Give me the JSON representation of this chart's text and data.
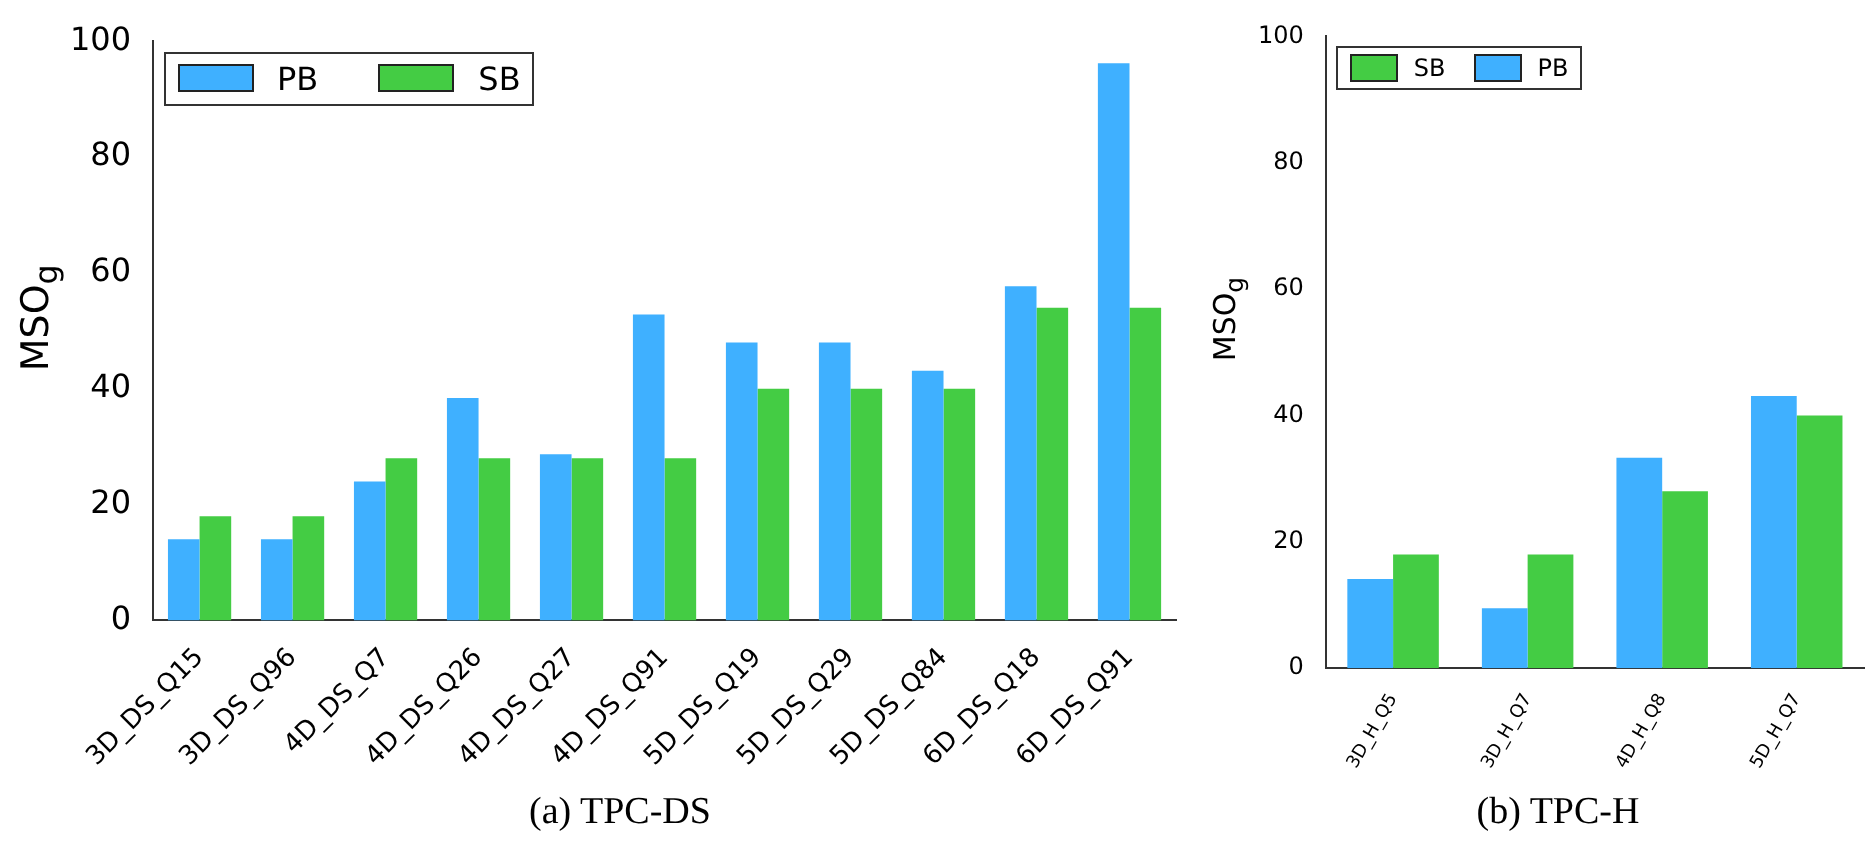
{
  "chart_data": [
    {
      "type": "bar",
      "title": "(a) TPC-DS",
      "ylabel": "MSO$_{g}$",
      "categories": [
        "3D_DS_Q15",
        "3D_DS_Q96",
        "4D_DS_Q7",
        "4D_DS_Q26",
        "4D_DS_Q27",
        "4D_DS_Q91",
        "5D_DS_Q19",
        "5D_DS_Q29",
        "5D_DS_Q84",
        "6D_DS_Q18",
        "6D_DS_Q91"
      ],
      "series": [
        {
          "name": "PB",
          "color": "#3fb0ff",
          "values": [
            14,
            14,
            24,
            38.4,
            28.7,
            52.8,
            48,
            48,
            43.1,
            57.7,
            96.2
          ]
        },
        {
          "name": "SB",
          "color": "#44cc44",
          "values": [
            18,
            18,
            28,
            28,
            28,
            28,
            40,
            40,
            40,
            54,
            54
          ]
        }
      ],
      "ylim": [
        0,
        100
      ],
      "yticks": [
        0,
        20,
        40,
        60,
        80,
        100
      ],
      "grid": false,
      "legend": "top left"
    },
    {
      "type": "bar",
      "title": "(b) TPC-H",
      "ylabel": "MSO$_{g}$",
      "categories": [
        "3D_H_Q5",
        "3D_H_Q7",
        "4D_H_Q8",
        "5D_H_Q7"
      ],
      "series": [
        {
          "name": "PB",
          "color": "#3fb0ff",
          "values": [
            14.1,
            9.5,
            33.3,
            43.1
          ]
        },
        {
          "name": "SB",
          "color": "#44cc44",
          "values": [
            18,
            18,
            28,
            40
          ]
        }
      ],
      "ylim": [
        0,
        100
      ],
      "yticks": [
        0,
        20,
        40,
        60,
        80,
        100
      ],
      "grid": false,
      "legend": "top left"
    }
  ]
}
